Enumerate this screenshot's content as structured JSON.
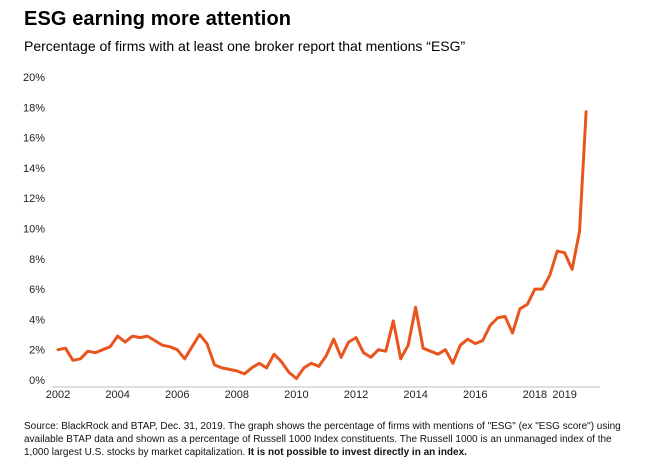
{
  "header": {
    "title": "ESG earning more attention",
    "subtitle": "Percentage of firms with at least one broker report that mentions “ESG”"
  },
  "footnote": {
    "text": "Source: BlackRock and BTAP, Dec. 31, 2019. The graph shows the percentage of firms with mentions of \"ESG\" (ex \"ESG score\") using available BTAP data and shown as a percentage of Russell 1000 Index constituents. The Russell 1000 is an unmanaged index of the 1,000 largest U.S. stocks by market capitalization.",
    "emphasis": "It is not possible to invest directly in an index."
  },
  "chart_data": {
    "type": "line",
    "title": "ESG earning more attention",
    "subtitle": "Percentage of firms with at least one broker report that mentions “ESG”",
    "xlabel": "",
    "ylabel": "",
    "ylim": [
      0,
      20
    ],
    "yticks": [
      "0%",
      "2%",
      "4%",
      "6%",
      "8%",
      "10%",
      "12%",
      "14%",
      "16%",
      "18%",
      "20%"
    ],
    "ytick_values": [
      0,
      2,
      4,
      6,
      8,
      10,
      12,
      14,
      16,
      18,
      20
    ],
    "xlim": [
      2002.0,
      2019.75
    ],
    "xticks": [
      "2002",
      "2004",
      "2006",
      "2008",
      "2010",
      "2012",
      "2014",
      "2016",
      "2018",
      "2019"
    ],
    "xtick_values": [
      2002,
      2004,
      2006,
      2008,
      2010,
      2012,
      2014,
      2016,
      2018,
      2019
    ],
    "grid": false,
    "color": "#E8561E",
    "series": [
      {
        "name": "Percentage of firms mentioning ESG",
        "x": [
          2002.0,
          2002.25,
          2002.5,
          2002.75,
          2003.0,
          2003.25,
          2003.5,
          2003.75,
          2004.0,
          2004.25,
          2004.5,
          2004.75,
          2005.0,
          2005.25,
          2005.5,
          2005.75,
          2006.0,
          2006.25,
          2006.5,
          2006.75,
          2007.0,
          2007.25,
          2007.5,
          2007.75,
          2008.0,
          2008.25,
          2008.5,
          2008.75,
          2009.0,
          2009.25,
          2009.5,
          2009.75,
          2010.0,
          2010.25,
          2010.5,
          2010.75,
          2011.0,
          2011.25,
          2011.5,
          2011.75,
          2012.0,
          2012.25,
          2012.5,
          2012.75,
          2013.0,
          2013.25,
          2013.5,
          2013.75,
          2014.0,
          2014.25,
          2014.5,
          2014.75,
          2015.0,
          2015.25,
          2015.5,
          2015.75,
          2016.0,
          2016.25,
          2016.5,
          2016.75,
          2017.0,
          2017.25,
          2017.5,
          2017.75,
          2018.0,
          2018.25,
          2018.5,
          2018.75,
          2019.0,
          2019.25,
          2019.5
        ],
        "values": [
          2.0,
          2.1,
          1.3,
          1.4,
          1.9,
          1.8,
          2.0,
          2.2,
          2.9,
          2.5,
          2.9,
          2.8,
          2.9,
          2.6,
          2.3,
          2.2,
          2.0,
          1.4,
          2.2,
          3.0,
          2.4,
          1.0,
          0.8,
          0.7,
          0.6,
          0.4,
          0.8,
          1.1,
          0.8,
          1.7,
          1.2,
          0.5,
          0.1,
          0.8,
          1.1,
          0.9,
          1.6,
          2.7,
          1.5,
          2.5,
          2.8,
          1.8,
          1.5,
          2.0,
          1.9,
          3.9,
          1.4,
          2.3,
          4.8,
          2.1,
          1.9,
          1.7,
          2.0,
          1.1,
          2.3,
          2.7,
          2.4,
          2.6,
          3.6,
          4.1,
          4.2,
          3.1,
          4.7,
          5.0,
          6.0,
          6.0,
          6.9,
          8.5,
          8.4,
          7.3,
          9.8
        ]
      }
    ],
    "final_point": {
      "x": 2019.72,
      "value": 17.7
    }
  }
}
